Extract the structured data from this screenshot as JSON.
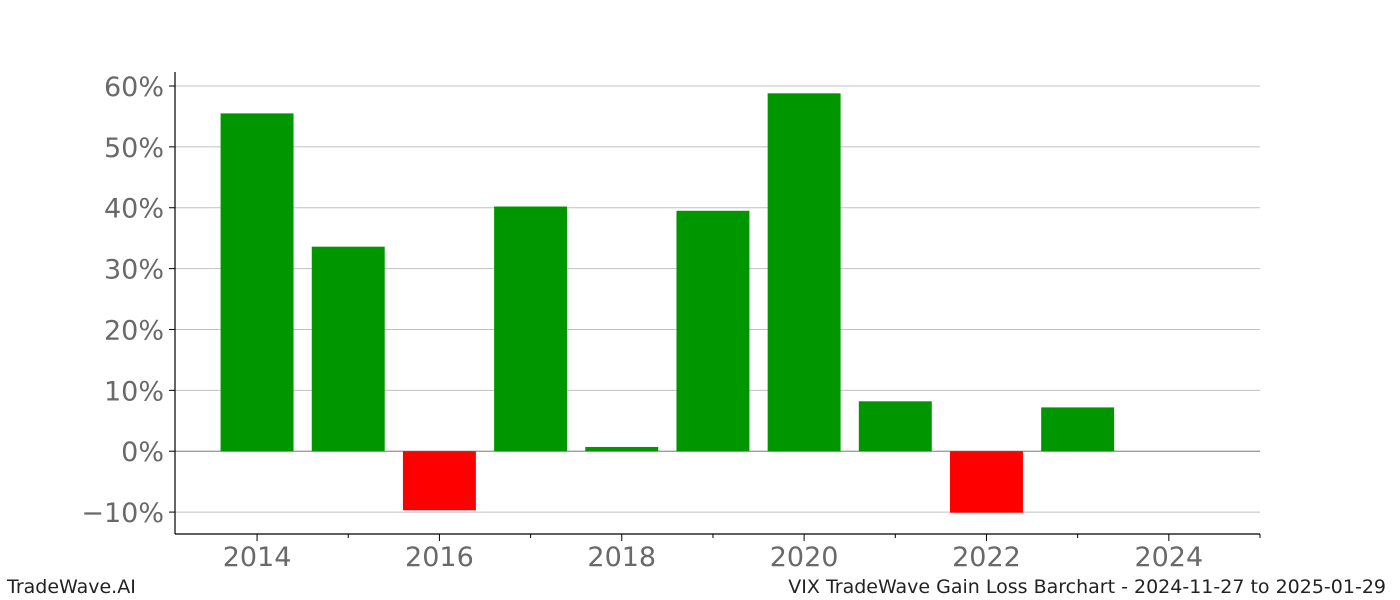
{
  "footer": {
    "brand": "TradeWave.AI",
    "caption": "VIX TradeWave Gain Loss Barchart - 2024-11-27 to 2025-01-29"
  },
  "chart_data": {
    "type": "bar",
    "title": "",
    "xlabel": "",
    "ylabel": "",
    "x": [
      2014,
      2015,
      2016,
      2017,
      2018,
      2019,
      2020,
      2021,
      2022,
      2023
    ],
    "values": [
      55.5,
      33.6,
      -9.7,
      40.2,
      0.7,
      39.5,
      58.8,
      8.2,
      -10.1,
      7.2
    ],
    "xlim": [
      2013.1,
      2025.0
    ],
    "ylim": [
      -13.6,
      62.3
    ],
    "xticks": [
      2014,
      2016,
      2018,
      2020,
      2022,
      2024
    ],
    "yticks": [
      -10,
      0,
      10,
      20,
      30,
      40,
      50,
      60
    ],
    "ytick_format": "percent",
    "colors": {
      "positive": "#009600",
      "negative": "#ff0000",
      "grid": "#c0c0c0",
      "tick_text": "#696969"
    },
    "grid": "horizontal",
    "legend": "none"
  }
}
